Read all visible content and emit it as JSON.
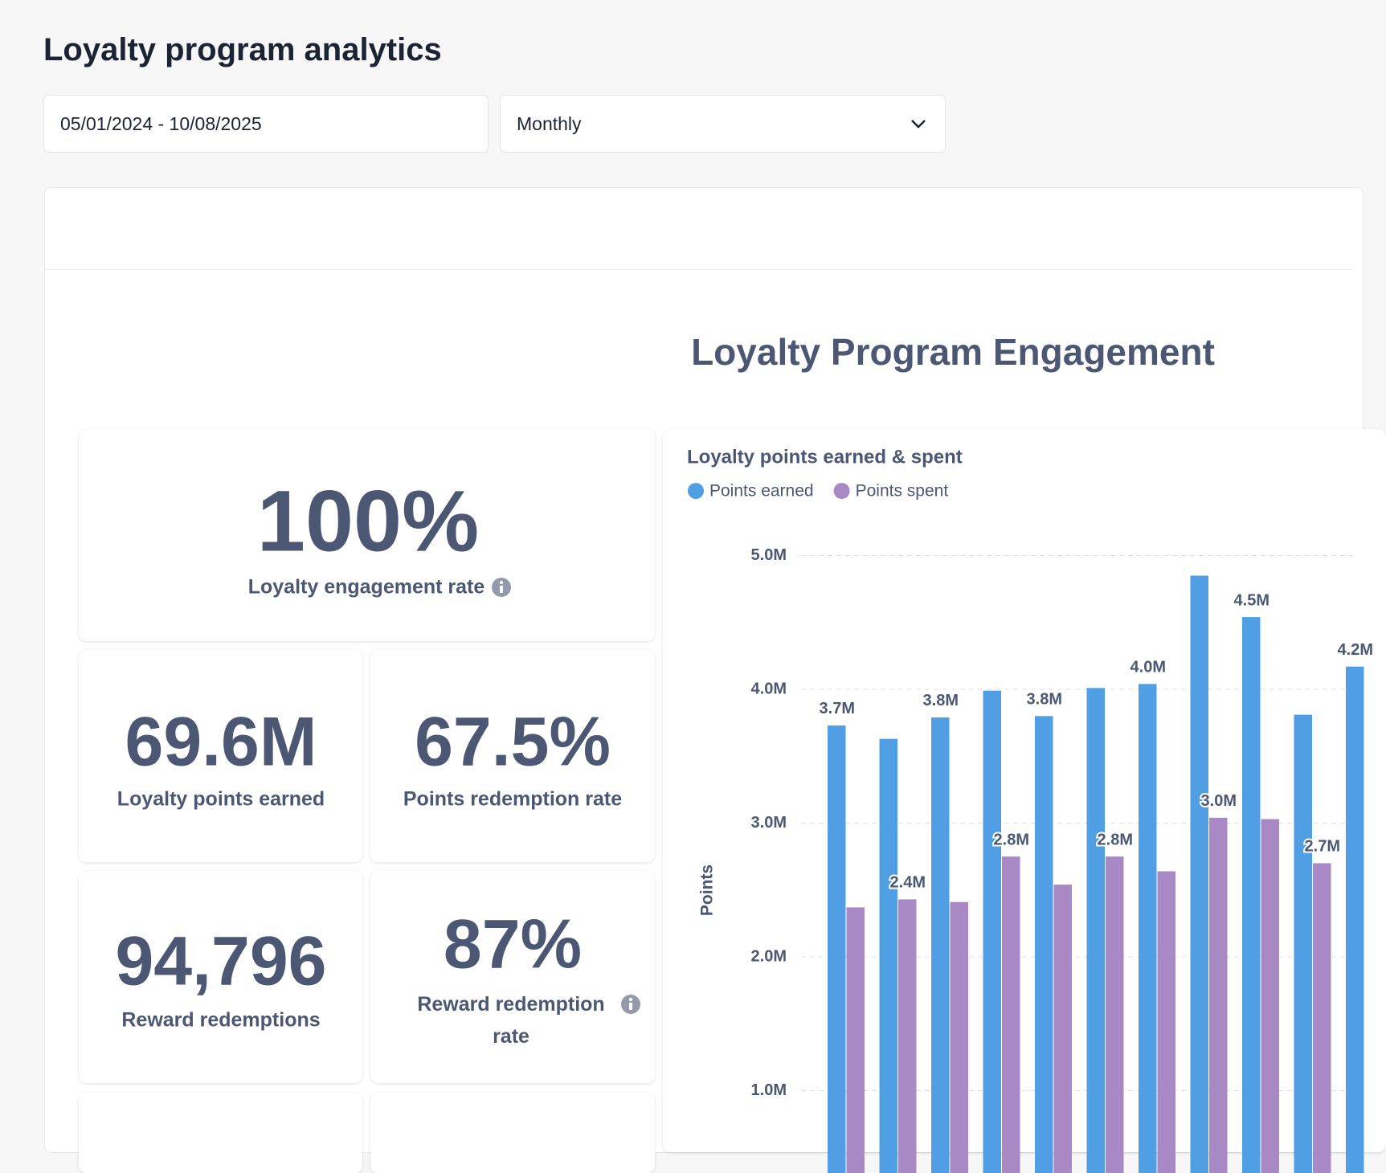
{
  "header": {
    "title": "Loyalty program analytics"
  },
  "filters": {
    "date_range": "05/01/2024 - 10/08/2025",
    "granularity": "Monthly"
  },
  "section_title": "Loyalty Program Engagement",
  "kpis": [
    {
      "value": "100%",
      "label": "Loyalty engagement rate"
    },
    {
      "value": "69.6M",
      "label": "Loyalty points earned"
    },
    {
      "value": "67.5%",
      "label": "Points redemption rate"
    },
    {
      "value": "94,796",
      "label": "Reward redemptions"
    },
    {
      "value": "87%",
      "label": "Reward redemption rate"
    }
  ],
  "chart_data": {
    "type": "bar",
    "title": "Loyalty points earned & spent",
    "y_label": "Points",
    "categories": [
      null,
      null,
      null,
      null,
      null,
      null,
      null,
      null,
      null,
      null,
      null
    ],
    "ylim": [
      0,
      5
    ],
    "yticks": [
      {
        "value": 1,
        "label": "1.0M"
      },
      {
        "value": 2,
        "label": "2.0M"
      },
      {
        "value": 3,
        "label": "3.0M"
      },
      {
        "value": 4,
        "label": "4.0M"
      },
      {
        "value": 5,
        "label": "5.0M"
      }
    ],
    "grid": true,
    "series": [
      {
        "name": "Points earned",
        "color": "#509ee3",
        "values": [
          3.73,
          3.63,
          3.79,
          3.99,
          3.8,
          4.01,
          4.04,
          4.85,
          4.54,
          3.81,
          4.17
        ],
        "value_labels": [
          "3.7M",
          null,
          "3.8M",
          null,
          "3.8M",
          null,
          "4.0M",
          null,
          "4.5M",
          null,
          "4.2M"
        ]
      },
      {
        "name": "Points spent",
        "color": "#a989c5",
        "values": [
          2.37,
          2.43,
          2.41,
          2.75,
          2.54,
          2.75,
          2.64,
          3.04,
          3.03,
          2.7,
          null
        ],
        "value_labels": [
          null,
          "2.4M",
          null,
          "2.8M",
          null,
          "2.8M",
          null,
          "3.0M",
          null,
          "2.7M",
          null
        ]
      }
    ]
  }
}
